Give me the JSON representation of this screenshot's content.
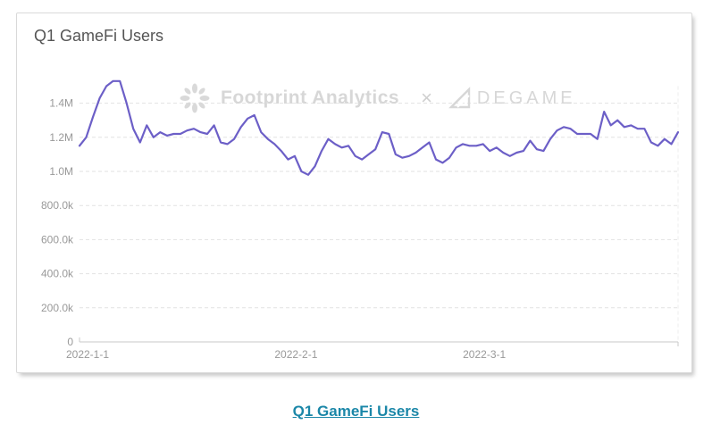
{
  "card": {
    "title": "Q1 GameFi Users"
  },
  "watermark": {
    "brand_left": "Footprint Analytics",
    "separator": "×",
    "brand_right": "DEGAME",
    "left_icon": "footprint-burst-icon",
    "right_icon": "degame-triangle-icon",
    "color": "#D9D9D9"
  },
  "footer": {
    "link_label": "Q1 GameFi Users",
    "link_color": "#1B87A8"
  },
  "chart_data": {
    "type": "line",
    "title": "Q1 GameFi Users",
    "legend": "none",
    "grid": "horizontal-dashed",
    "x_unit": "day",
    "x_start_date": "2022-1-1",
    "x_tick_labels": [
      "2022-1-1",
      "2022-2-1",
      "2022-3-1"
    ],
    "x_tick_day_index": [
      0,
      31,
      59
    ],
    "y_ticks": [
      {
        "label": "0",
        "value": 0
      },
      {
        "label": "200.0k",
        "value": 200000
      },
      {
        "label": "400.0k",
        "value": 400000
      },
      {
        "label": "600.0k",
        "value": 600000
      },
      {
        "label": "800.0k",
        "value": 800000
      },
      {
        "label": "1.0M",
        "value": 1000000
      },
      {
        "label": "1.2M",
        "value": 1200000
      },
      {
        "label": "1.4M",
        "value": 1400000
      }
    ],
    "ylim": [
      0,
      1600000
    ],
    "axis_label_color": "#999999",
    "grid_color": "#E2E2E2",
    "axis_line_color": "#C8C8C8",
    "series": [
      {
        "name": "Q1 GameFi Users",
        "color": "#6C5FC7",
        "values": [
          1150000,
          1200000,
          1320000,
          1430000,
          1500000,
          1530000,
          1530000,
          1400000,
          1250000,
          1170000,
          1270000,
          1200000,
          1230000,
          1210000,
          1220000,
          1220000,
          1240000,
          1250000,
          1230000,
          1220000,
          1270000,
          1170000,
          1160000,
          1190000,
          1260000,
          1310000,
          1330000,
          1230000,
          1190000,
          1160000,
          1120000,
          1070000,
          1090000,
          1000000,
          980000,
          1030000,
          1120000,
          1190000,
          1160000,
          1140000,
          1150000,
          1090000,
          1070000,
          1100000,
          1130000,
          1230000,
          1220000,
          1100000,
          1080000,
          1090000,
          1110000,
          1140000,
          1170000,
          1070000,
          1050000,
          1080000,
          1140000,
          1160000,
          1150000,
          1150000,
          1160000,
          1120000,
          1140000,
          1110000,
          1090000,
          1110000,
          1120000,
          1180000,
          1130000,
          1120000,
          1190000,
          1240000,
          1260000,
          1250000,
          1220000,
          1220000,
          1220000,
          1190000,
          1350000,
          1270000,
          1300000,
          1260000,
          1270000,
          1250000,
          1250000,
          1170000,
          1150000,
          1190000,
          1160000,
          1230000
        ]
      }
    ]
  }
}
